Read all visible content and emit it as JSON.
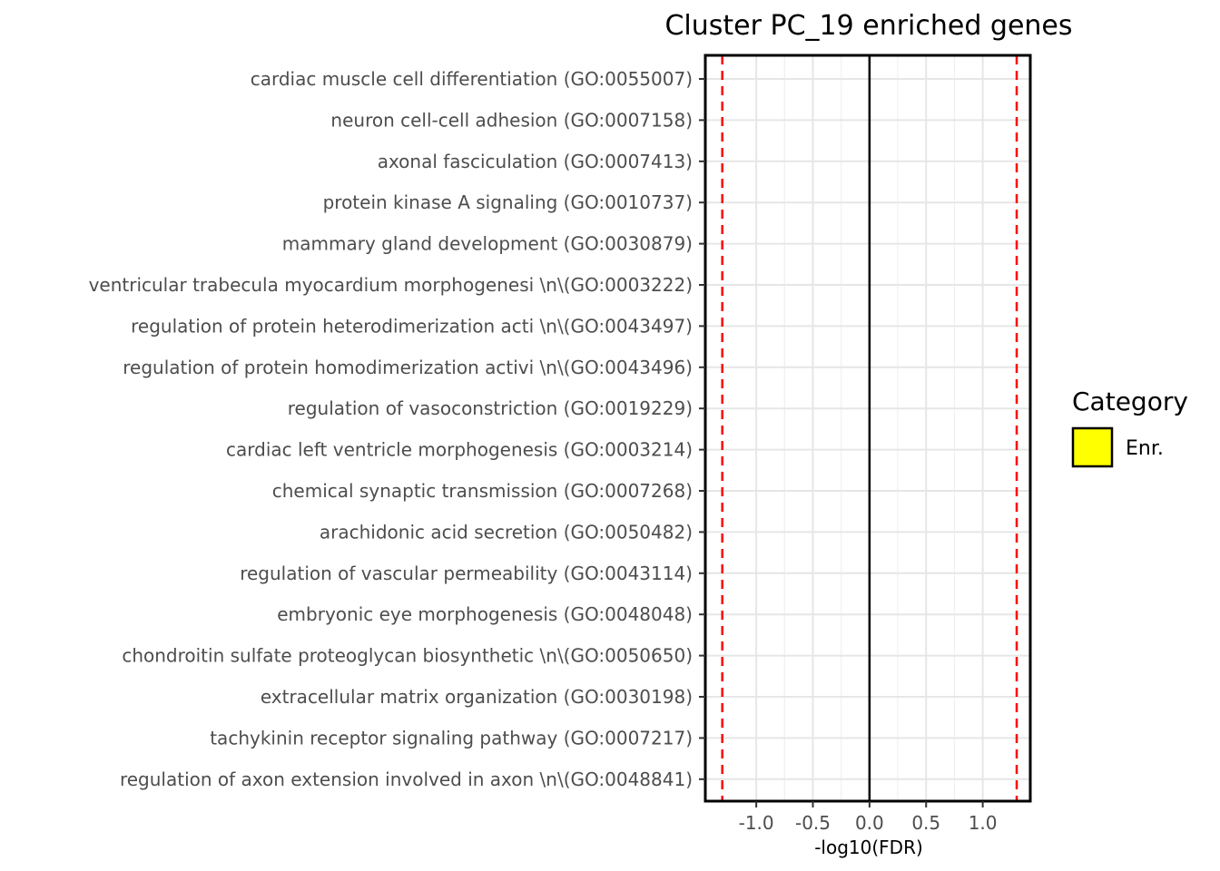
{
  "chart_data": {
    "type": "bar",
    "orientation": "horizontal",
    "title": "Cluster PC_19 enriched genes",
    "xlabel": "-log10(FDR)",
    "ylabel": "",
    "categories": [
      "cardiac muscle cell differentiation (GO:0055007)",
      "neuron cell-cell adhesion (GO:0007158)",
      "axonal fasciculation (GO:0007413)",
      "protein kinase A signaling (GO:0010737)",
      "mammary gland development (GO:0030879)",
      "ventricular trabecula myocardium morphogenesi \\n\\(GO:0003222)",
      "regulation of protein heterodimerization acti \\n\\(GO:0043497)",
      "regulation of protein homodimerization activi \\n\\(GO:0043496)",
      "regulation of vasoconstriction (GO:0019229)",
      "cardiac left ventricle morphogenesis (GO:0003214)",
      "chemical synaptic transmission (GO:0007268)",
      "arachidonic acid secretion (GO:0050482)",
      "regulation of vascular permeability (GO:0043114)",
      "embryonic eye morphogenesis (GO:0048048)",
      "chondroitin sulfate proteoglycan biosynthetic \\n\\(GO:0050650)",
      "extracellular matrix organization (GO:0030198)",
      "tachykinin receptor signaling pathway (GO:0007217)",
      "regulation of axon extension involved in axon \\n\\(GO:0048841)"
    ],
    "series": [
      {
        "name": "Enr.",
        "color": "#ffff00",
        "values": [
          0,
          0,
          0,
          0,
          0,
          0,
          0,
          0,
          0,
          0,
          0,
          0,
          0,
          0,
          0,
          0,
          0,
          0
        ]
      }
    ],
    "xlim": [
      -1.45,
      1.42
    ],
    "xticks": [
      -1.0,
      -0.5,
      0.0,
      0.5,
      1.0
    ],
    "xtick_labels": [
      "-1.0",
      "-0.5",
      "0.0",
      "0.5",
      "1.0"
    ],
    "reference_lines": [
      {
        "x": -1.3,
        "color": "#ff0000",
        "style": "dashed"
      },
      {
        "x": 1.3,
        "color": "#ff0000",
        "style": "dashed"
      },
      {
        "x": 0,
        "color": "#000000",
        "style": "solid"
      }
    ],
    "grid": true,
    "legend": {
      "title": "Category",
      "placement": "right",
      "items": [
        {
          "label": "Enr.",
          "color": "#ffff00"
        }
      ]
    }
  }
}
